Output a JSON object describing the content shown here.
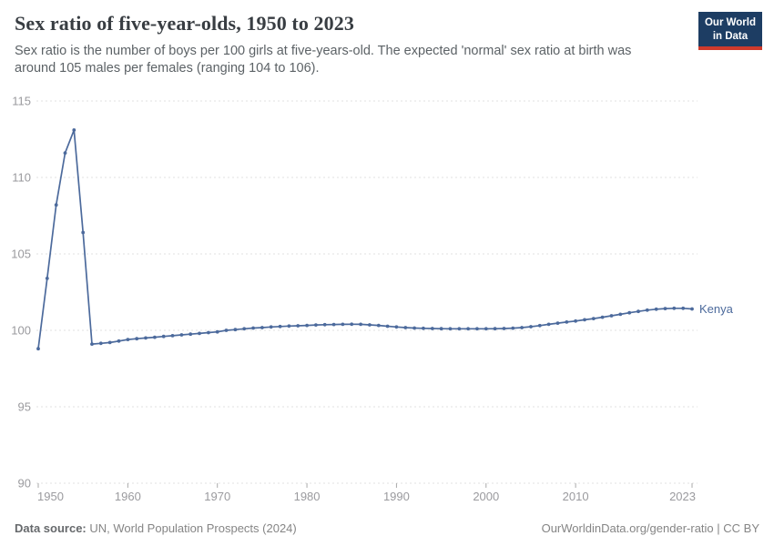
{
  "header": {
    "title": "Sex ratio of five-year-olds, 1950 to 2023",
    "subtitle": "Sex ratio is the number of boys per 100 girls at five-years-old. The expected 'normal' sex ratio at birth was around 105 males per females (ranging 104 to 106)."
  },
  "logo": {
    "line1": "Our World",
    "line2": "in Data",
    "bg_color": "#1d3d63",
    "accent_color": "#cf3a2c"
  },
  "footer": {
    "source_label": "Data source:",
    "source_text": " UN, World Population Prospects (2024)",
    "url_text": "OurWorldinData.org/gender-ratio",
    "divider": " | ",
    "license_text": "CC BY"
  },
  "colors": {
    "line": "#4c6a9c",
    "grid": "#e2e2e2",
    "tick": "#aaaaaa",
    "axis_text": "#9a9a9e",
    "title_text": "#383d42",
    "subtitle_text": "#5c6266",
    "footer_text": "#858585"
  },
  "chart_data": {
    "type": "line",
    "title": "Sex ratio of five-year-olds, 1950 to 2023",
    "xlabel": "",
    "ylabel": "",
    "ylim": [
      90,
      115
    ],
    "yticks": [
      90,
      95,
      100,
      105,
      110,
      115
    ],
    "xticks": [
      1950,
      1960,
      1970,
      1980,
      1990,
      2000,
      2010,
      2023
    ],
    "grid": "horizontal-dashed",
    "legend": "end-of-line-label",
    "x": [
      1950,
      1951,
      1952,
      1953,
      1954,
      1955,
      1956,
      1957,
      1958,
      1959,
      1960,
      1961,
      1962,
      1963,
      1964,
      1965,
      1966,
      1967,
      1968,
      1969,
      1970,
      1971,
      1972,
      1973,
      1974,
      1975,
      1976,
      1977,
      1978,
      1979,
      1980,
      1981,
      1982,
      1983,
      1984,
      1985,
      1986,
      1987,
      1988,
      1989,
      1990,
      1991,
      1992,
      1993,
      1994,
      1995,
      1996,
      1997,
      1998,
      1999,
      2000,
      2001,
      2002,
      2003,
      2004,
      2005,
      2006,
      2007,
      2008,
      2009,
      2010,
      2011,
      2012,
      2013,
      2014,
      2015,
      2016,
      2017,
      2018,
      2019,
      2020,
      2021,
      2022,
      2023
    ],
    "series": [
      {
        "name": "Kenya",
        "color": "#4c6a9c",
        "values": [
          98.8,
          103.4,
          108.2,
          111.6,
          113.1,
          106.4,
          99.1,
          99.15,
          99.2,
          99.3,
          99.4,
          99.45,
          99.5,
          99.55,
          99.6,
          99.65,
          99.7,
          99.75,
          99.8,
          99.85,
          99.9,
          100.0,
          100.05,
          100.1,
          100.15,
          100.18,
          100.22,
          100.25,
          100.28,
          100.3,
          100.32,
          100.35,
          100.37,
          100.38,
          100.39,
          100.4,
          100.39,
          100.36,
          100.32,
          100.27,
          100.22,
          100.18,
          100.15,
          100.13,
          100.12,
          100.11,
          100.1,
          100.1,
          100.1,
          100.1,
          100.1,
          100.11,
          100.12,
          100.14,
          100.18,
          100.24,
          100.31,
          100.39,
          100.47,
          100.54,
          100.61,
          100.69,
          100.77,
          100.86,
          100.95,
          101.05,
          101.15,
          101.24,
          101.32,
          101.38,
          101.42,
          101.44,
          101.44,
          101.4
        ]
      }
    ]
  }
}
